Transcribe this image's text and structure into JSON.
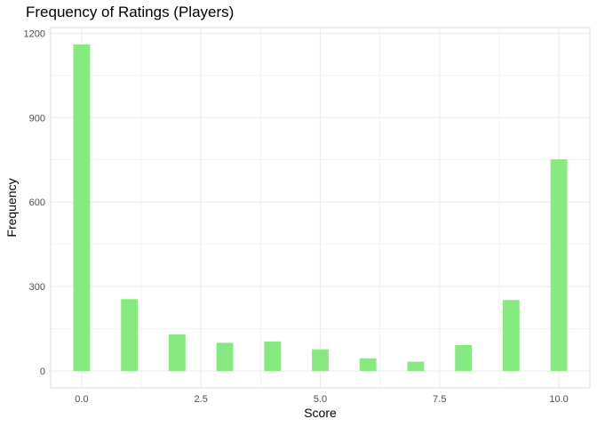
{
  "chart_data": {
    "type": "bar",
    "title": "Frequency of Ratings (Players)",
    "xlabel": "Score",
    "ylabel": "Frequency",
    "x": [
      0,
      1,
      2,
      3,
      4,
      5,
      6,
      7,
      8,
      9,
      10
    ],
    "values": [
      1160,
      255,
      130,
      100,
      105,
      77,
      45,
      33,
      92,
      252,
      752
    ],
    "xlim": [
      -0.65,
      10.65
    ],
    "ylim": [
      -60,
      1220
    ],
    "xticks": [
      0.0,
      2.5,
      5.0,
      7.5,
      10.0
    ],
    "xtick_labels": [
      "0.0",
      "2.5",
      "5.0",
      "7.5",
      "10.0"
    ],
    "yticks": [
      0,
      300,
      600,
      900,
      1200
    ],
    "ytick_labels": [
      "0",
      "300",
      "600",
      "900",
      "1200"
    ],
    "grid": true,
    "legend": "none",
    "bar_color": "#86ea80",
    "grid_color": "#ebebeb"
  }
}
